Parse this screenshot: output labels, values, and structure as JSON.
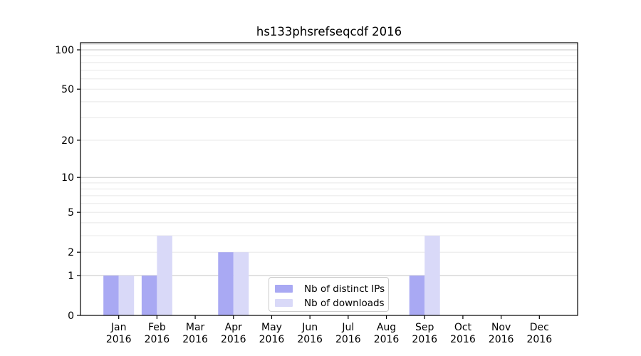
{
  "chart_data": {
    "type": "bar",
    "title": "hs133phsrefseqcdf 2016",
    "x_axis": {
      "months": [
        "Jan",
        "Feb",
        "Mar",
        "Apr",
        "May",
        "Jun",
        "Jul",
        "Aug",
        "Sep",
        "Oct",
        "Nov",
        "Dec"
      ],
      "year": "2016"
    },
    "y_axis": {
      "scale": "log1p",
      "ticks": [
        0,
        1,
        2,
        5,
        10,
        20,
        50,
        100
      ],
      "major_gridlines": [
        1,
        10,
        100
      ],
      "minor_gridlines": [
        2,
        3,
        4,
        5,
        6,
        7,
        8,
        9,
        20,
        30,
        40,
        50,
        60,
        70,
        80,
        90,
        110
      ],
      "ylim": [
        0,
        113
      ]
    },
    "series": [
      {
        "name": "Nb of distinct IPs",
        "color": "#a9a9f3",
        "values": [
          1,
          1,
          0,
          2,
          0,
          0,
          0,
          0,
          1,
          0,
          0,
          0
        ]
      },
      {
        "name": "Nb of downloads",
        "color": "#d9d9f8",
        "values": [
          1,
          3,
          0,
          2,
          0,
          0,
          0,
          0,
          3,
          0,
          0,
          0
        ]
      }
    ],
    "legend_position": "lower center",
    "grid": "on"
  },
  "colors": {
    "major_grid": "#c6c6c6",
    "minor_grid": "#e8e8e8",
    "spine": "#000000",
    "background": "#ffffff",
    "text": "#000000"
  }
}
